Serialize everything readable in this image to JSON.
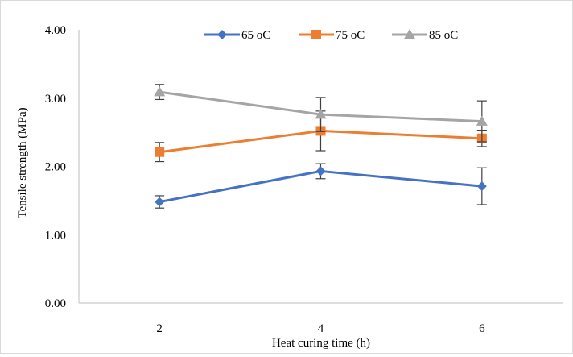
{
  "chart_data": {
    "type": "line",
    "title": "",
    "xlabel": "Heat curing time (h)",
    "ylabel": "Tensile strength (MPa)",
    "x": [
      2,
      4,
      6
    ],
    "x_tick_labels": [
      "2",
      "4",
      "6"
    ],
    "ylim": [
      0,
      4
    ],
    "y_tick_labels": [
      "0.00",
      "1.00",
      "2.00",
      "3.00",
      "4.00"
    ],
    "grid": false,
    "legend_position": "top",
    "series": [
      {
        "name": "65 oC",
        "color": "#4472C4",
        "marker": "diamond",
        "values": [
          1.48,
          1.93,
          1.71
        ],
        "error": [
          0.09,
          0.11,
          0.27
        ]
      },
      {
        "name": "75 oC",
        "color": "#ED7D31",
        "marker": "square",
        "values": [
          2.21,
          2.52,
          2.41
        ],
        "error": [
          0.14,
          0.29,
          0.12
        ]
      },
      {
        "name": "85 oC",
        "color": "#A5A5A5",
        "marker": "triangle",
        "values": [
          3.09,
          2.76,
          2.66
        ],
        "error": [
          0.11,
          0.25,
          0.3
        ]
      }
    ]
  }
}
